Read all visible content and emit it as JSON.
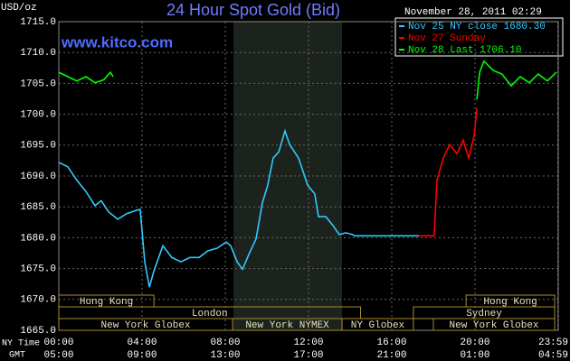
{
  "chart_data": {
    "type": "line",
    "title": "24 Hour Spot Gold (Bid)",
    "watermark": "www.kitco.com",
    "timestamp": "November 28, 2011 02:29",
    "y_label": "USD/oz",
    "x_label": "NY Time",
    "x2_label": "GMT",
    "xlim": [
      0,
      24
    ],
    "ylim": [
      1665,
      1715
    ],
    "grid": true,
    "legend": "top-right",
    "yticks": [
      {
        "value": 1665,
        "label": "1665.0"
      },
      {
        "value": 1670,
        "label": "1670.0"
      },
      {
        "value": 1675,
        "label": "1675.0"
      },
      {
        "value": 1680,
        "label": "1680.0"
      },
      {
        "value": 1685,
        "label": "1685.0"
      },
      {
        "value": 1690,
        "label": "1690.0"
      },
      {
        "value": 1695,
        "label": "1695.0"
      },
      {
        "value": 1700,
        "label": "1700.0"
      },
      {
        "value": 1705,
        "label": "1705.0"
      },
      {
        "value": 1710,
        "label": "1710.0"
      },
      {
        "value": 1715,
        "label": "1715.0"
      }
    ],
    "xticks": [
      {
        "value": 0,
        "label": "00:00"
      },
      {
        "value": 4,
        "label": "04:00"
      },
      {
        "value": 8,
        "label": "08:00"
      },
      {
        "value": 12,
        "label": "12:00"
      },
      {
        "value": 16,
        "label": "16:00"
      },
      {
        "value": 20,
        "label": "20:00"
      },
      {
        "value": 23.98,
        "label": "23:59"
      }
    ],
    "x2ticks": [
      {
        "value": 0,
        "label": "05:00"
      },
      {
        "value": 4,
        "label": "09:00"
      },
      {
        "value": 8,
        "label": "13:00"
      },
      {
        "value": 12,
        "label": "17:00"
      },
      {
        "value": 16,
        "label": "21:00"
      },
      {
        "value": 20,
        "label": "01:00"
      },
      {
        "value": 23.98,
        "label": "04:59"
      }
    ],
    "series": [
      {
        "name": "Nov 25 NY close 1680.30",
        "color": "#33c8ff",
        "x": [
          0,
          0.43,
          0.87,
          1.3,
          1.74,
          2.04,
          2.39,
          2.83,
          3.26,
          3.7,
          3.91,
          4.13,
          4.35,
          4.57,
          5.0,
          5.43,
          5.87,
          6.3,
          6.74,
          7.17,
          7.61,
          8.04,
          8.26,
          8.57,
          8.83,
          9.13,
          9.48,
          9.78,
          10.04,
          10.3,
          10.57,
          10.87,
          11.09,
          11.52,
          11.96,
          12.3,
          12.48,
          12.83,
          13.17,
          13.48,
          13.78,
          14.13,
          14.22,
          17.3
        ],
        "values": [
          1692.2,
          1691.5,
          1689.3,
          1687.5,
          1685.2,
          1686.0,
          1684.2,
          1683.0,
          1683.9,
          1684.4,
          1684.6,
          1676.1,
          1672.0,
          1674.6,
          1678.7,
          1676.8,
          1676.1,
          1676.8,
          1676.8,
          1677.9,
          1678.3,
          1679.3,
          1678.7,
          1676.1,
          1674.9,
          1677.3,
          1679.8,
          1685.6,
          1688.5,
          1692.9,
          1693.9,
          1697.3,
          1695.1,
          1692.9,
          1688.5,
          1687.1,
          1683.4,
          1683.4,
          1682.0,
          1680.5,
          1680.8,
          1680.5,
          1680.3,
          1680.3
        ]
      },
      {
        "name": "Nov 27 Sunday",
        "color": "#ff0000",
        "x": [
          17.3,
          18.04,
          18.17,
          18.48,
          18.78,
          19.13,
          19.43,
          19.7,
          19.96,
          20.09
        ],
        "values": [
          1680.3,
          1680.3,
          1689.3,
          1692.9,
          1695.1,
          1693.6,
          1695.8,
          1692.9,
          1696.6,
          1701.0
        ]
      },
      {
        "name": "Nov 28 Last 1706.10",
        "color": "#00ff00",
        "x": [
          0,
          0.43,
          0.87,
          1.3,
          1.74,
          2.17,
          2.48,
          2.61,
          null,
          20.09,
          20.22,
          20.43,
          20.87,
          21.3,
          21.74,
          22.17,
          22.61,
          23.04,
          23.48,
          23.91
        ],
        "values": [
          1706.8,
          1706.1,
          1705.4,
          1706.1,
          1705.1,
          1705.6,
          1706.8,
          1706.1,
          null,
          1702.4,
          1706.8,
          1708.6,
          1707.1,
          1706.5,
          1704.6,
          1706.1,
          1705.1,
          1706.5,
          1705.4,
          1706.8
        ]
      }
    ],
    "sessions": [
      [
        {
          "label": "Hong Kong",
          "start": 0,
          "end": 4.57
        },
        {
          "label": "Hong Kong",
          "start": 19.57,
          "end": 23.83
        }
      ],
      [
        {
          "label": "London",
          "start": 0,
          "end": 14.5
        },
        {
          "label": "Sydney",
          "start": 17.04,
          "end": 23.83
        }
      ],
      [
        {
          "label": "New York Globex",
          "start": 0,
          "end": 8.35
        },
        {
          "label": "New York NYMEX",
          "start": 8.35,
          "end": 13.61
        },
        {
          "label": "NY Globex",
          "start": 13.61,
          "end": 17.04
        },
        {
          "label": "New York Globex",
          "start": 18.0,
          "end": 23.83
        }
      ]
    ]
  }
}
